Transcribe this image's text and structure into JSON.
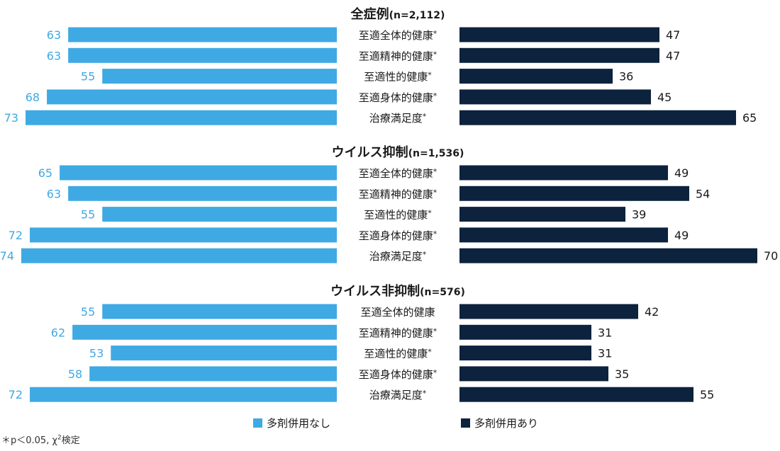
{
  "colors": {
    "left": "#3fa9e3",
    "right": "#0c223d",
    "text": "#1a1a1a"
  },
  "legend": {
    "left": "多剤併用なし",
    "right": "多剤併用あり"
  },
  "footnote": {
    "prefix": "＊p＜0.05,  χ",
    "sup": "2",
    "suffix": "検定"
  },
  "chart_data": {
    "type": "bar",
    "orientation": "horizontal-diverging",
    "scale_max": 74,
    "groups": [
      {
        "title": "全症例",
        "n": "(n=2,112)",
        "categories": [
          "至適全体的健康*",
          "至適精神的健康*",
          "至適性的健康*",
          "至適身体的健康*",
          "治療満足度*"
        ],
        "series": [
          {
            "name": "多剤併用なし",
            "values": [
              63,
              63,
              55,
              68,
              73
            ]
          },
          {
            "name": "多剤併用あり",
            "values": [
              47,
              47,
              36,
              45,
              65
            ]
          }
        ]
      },
      {
        "title": "ウイルス抑制",
        "n": "(n=1,536)",
        "categories": [
          "至適全体的健康*",
          "至適精神的健康*",
          "至適性的健康*",
          "至適身体的健康*",
          "治療満足度*"
        ],
        "series": [
          {
            "name": "多剤併用なし",
            "values": [
              65,
              63,
              55,
              72,
              74
            ]
          },
          {
            "name": "多剤併用あり",
            "values": [
              49,
              54,
              39,
              49,
              70
            ]
          }
        ]
      },
      {
        "title": "ウイルス非抑制",
        "n": "(n=576)",
        "categories": [
          "至適全体的健康",
          "至適精神的健康*",
          "至適性的健康*",
          "至適身体的健康*",
          "治療満足度*"
        ],
        "series": [
          {
            "name": "多剤併用なし",
            "values": [
              55,
              62,
              53,
              58,
              72
            ]
          },
          {
            "name": "多剤併用あり",
            "values": [
              42,
              31,
              31,
              35,
              55
            ]
          }
        ]
      }
    ]
  }
}
